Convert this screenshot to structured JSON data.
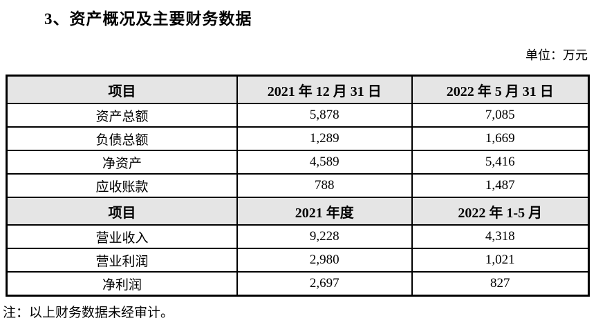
{
  "page": {
    "title": "3、资产概况及主要财务数据",
    "unit_label": "单位：万元",
    "note": "注：以上财务数据未经审计。"
  },
  "colors": {
    "header_bg": "#e5e5e5",
    "border": "#000000",
    "text": "#000000",
    "background": "#ffffff"
  },
  "table": {
    "sections": [
      {
        "header": [
          "项目",
          "2021 年 12 月 31 日",
          "2022 年 5 月 31 日"
        ],
        "rows": [
          [
            "资产总额",
            "5,878",
            "7,085"
          ],
          [
            "负债总额",
            "1,289",
            "1,669"
          ],
          [
            "净资产",
            "4,589",
            "5,416"
          ],
          [
            "应收账款",
            "788",
            "1,487"
          ]
        ]
      },
      {
        "header": [
          "项目",
          "2021 年度",
          "2022 年 1-5 月"
        ],
        "rows": [
          [
            "营业收入",
            "9,228",
            "4,318"
          ],
          [
            "营业利润",
            "2,980",
            "1,021"
          ],
          [
            "净利润",
            "2,697",
            "827"
          ]
        ]
      }
    ]
  }
}
